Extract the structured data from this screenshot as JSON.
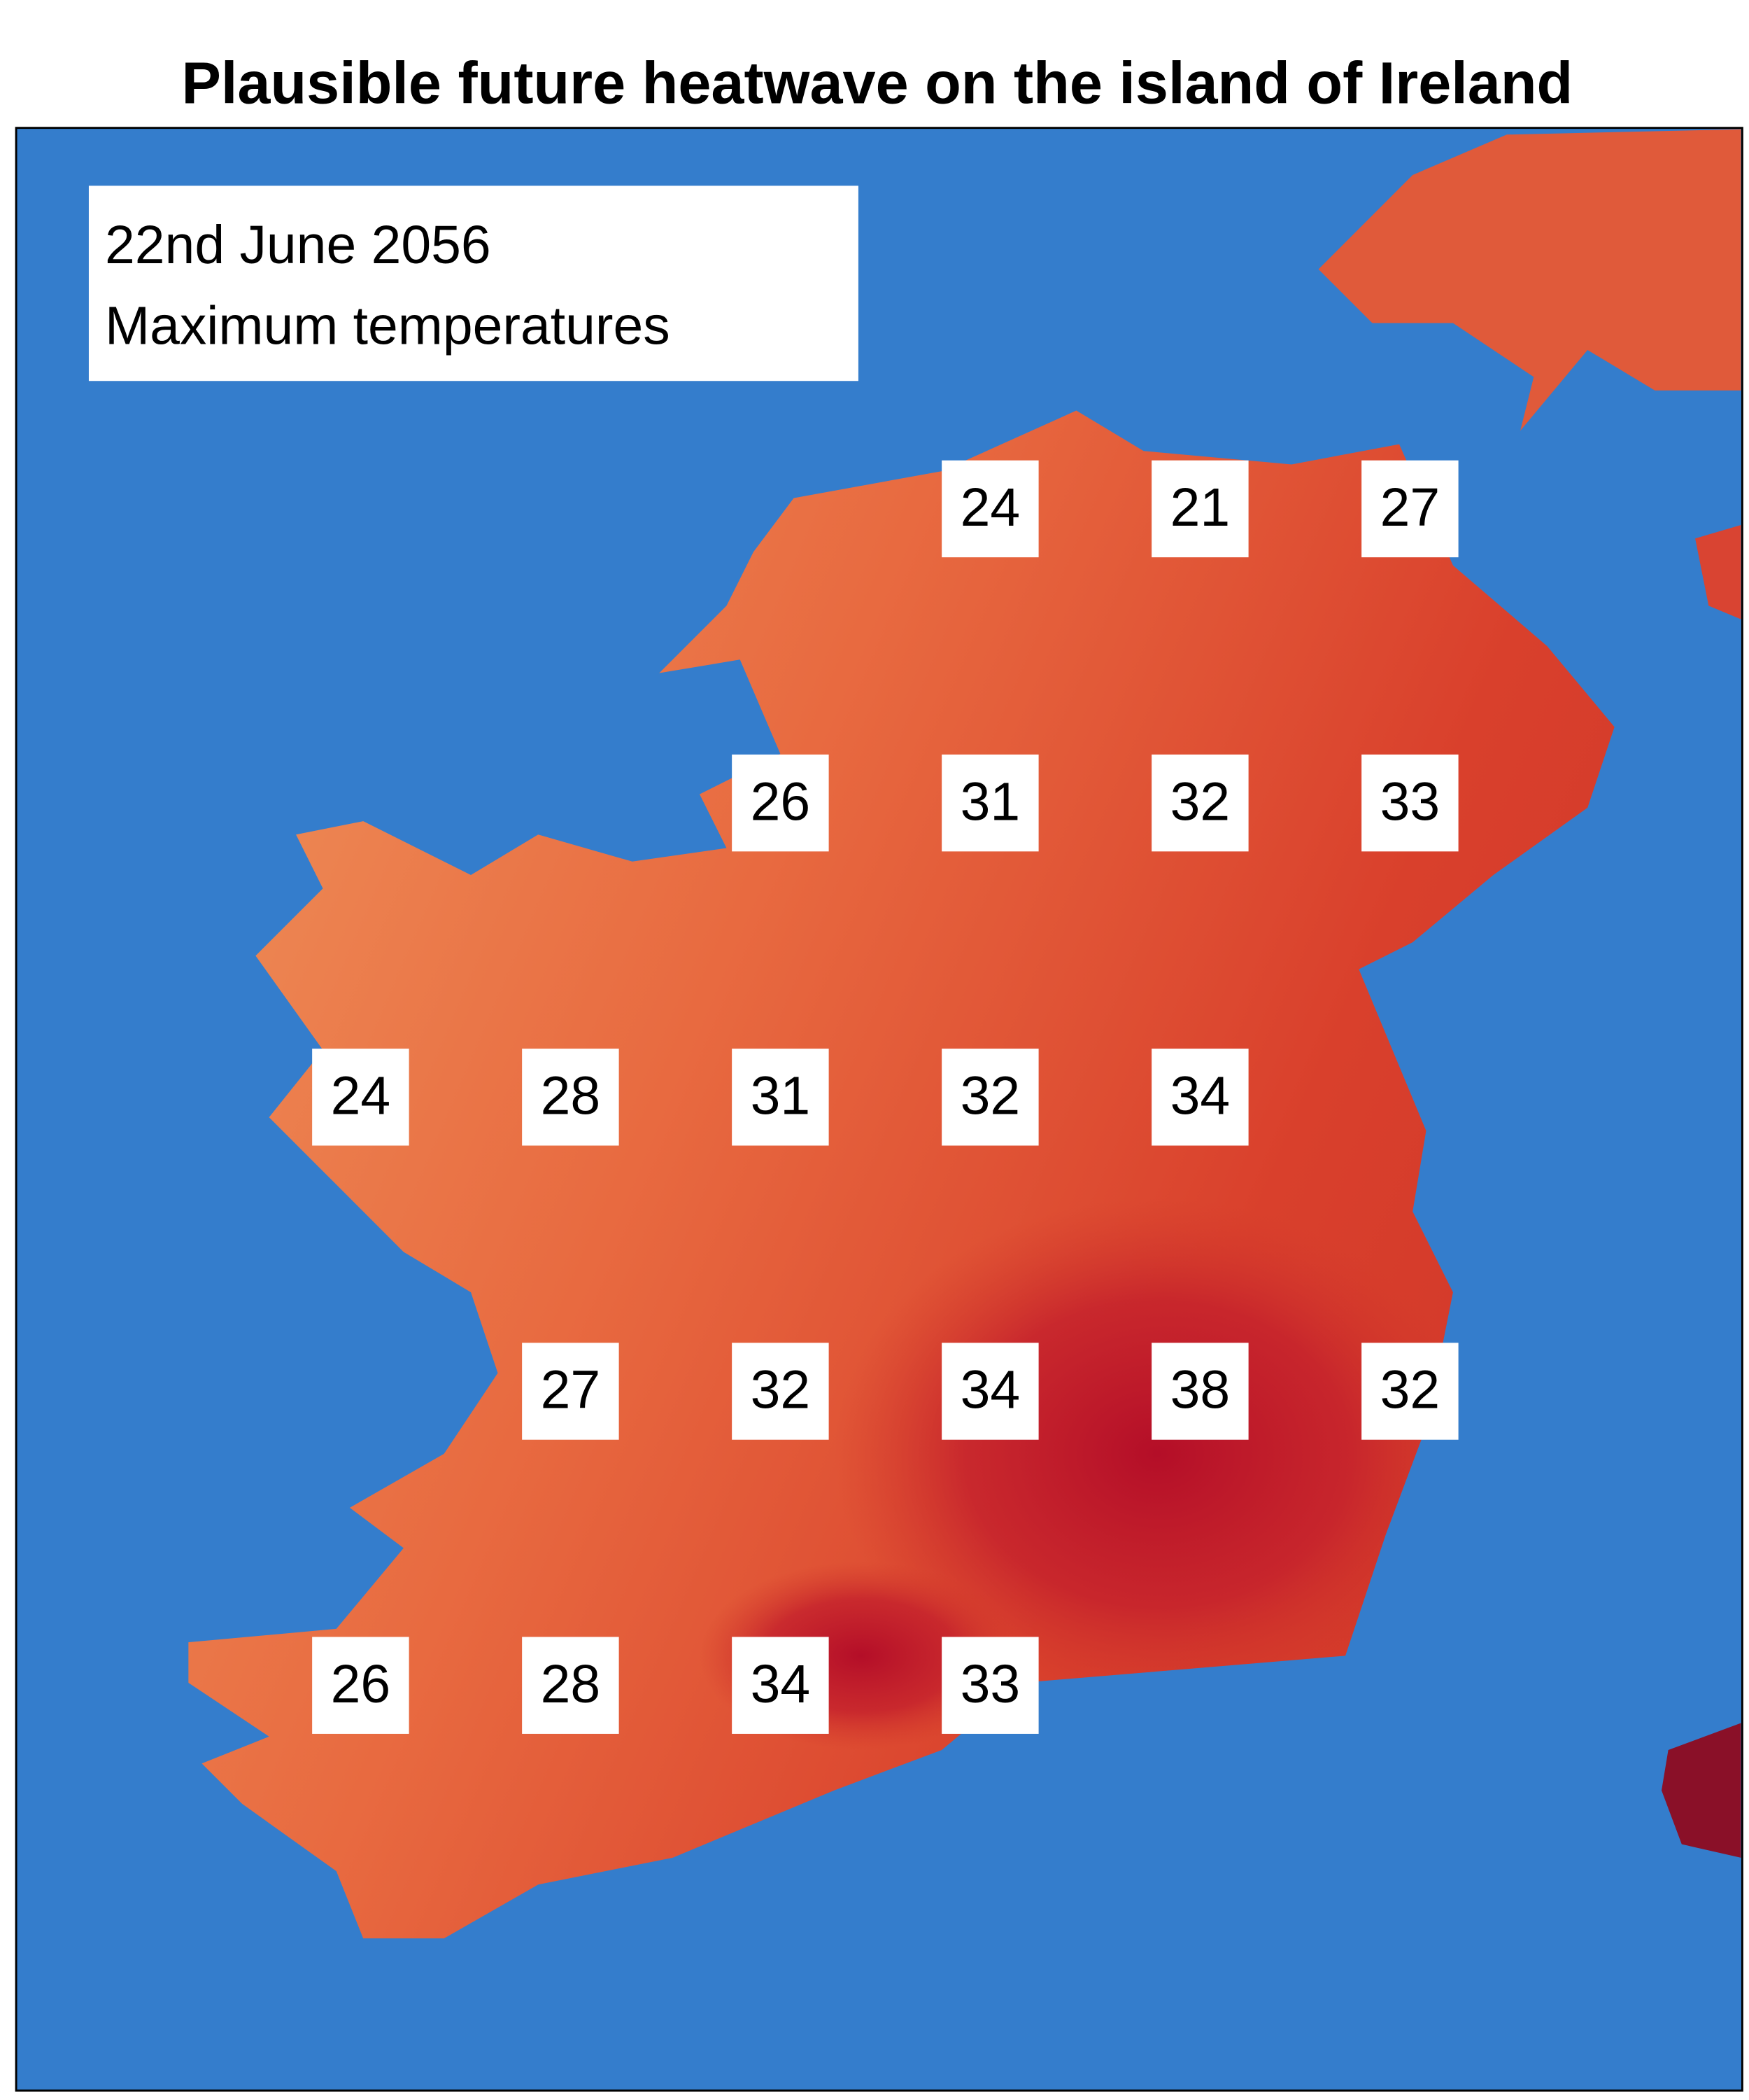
{
  "title": "Plausible future heatwave on the island of Ireland",
  "info": {
    "date": "22nd June 2056",
    "description": "Maximum temperatures"
  },
  "temperatures": [
    24,
    21,
    27,
    26,
    31,
    32,
    33,
    24,
    28,
    31,
    32,
    34,
    27,
    32,
    34,
    38,
    32,
    26,
    28,
    34,
    33
  ]
}
